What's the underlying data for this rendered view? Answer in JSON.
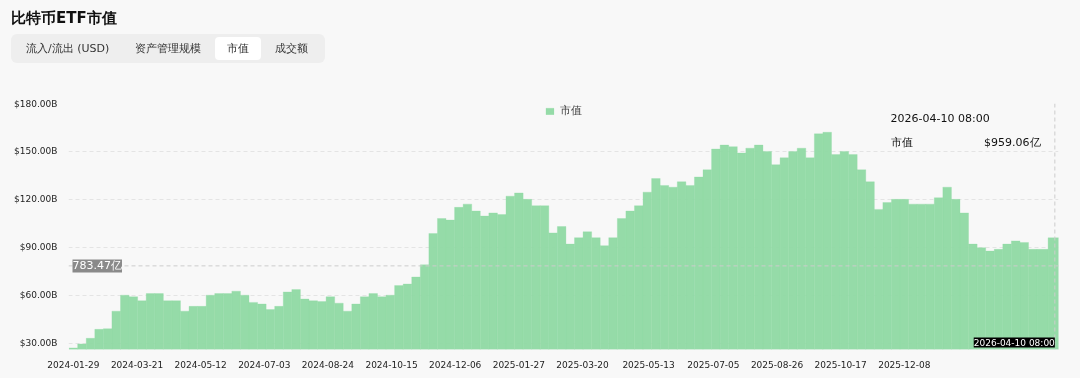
{
  "chart_data": {
    "type": "bar",
    "title": "比特币ETF市值",
    "annotations": [
      "流入/流出 (USD)",
      "资产管理规模",
      "市值",
      "成交额",
      "2026-04-10 08:00",
      "市值",
      "$959.06亿"
    ],
    "series": [
      {
        "name": "市值",
        "color": "#8fd9a3",
        "x": [
          "2024-01-29",
          "2024-02-05",
          "2024-02-12",
          "2024-02-19",
          "2024-02-26",
          "2024-03-04",
          "2024-03-11",
          "2024-03-18",
          "2024-03-25",
          "2024-04-01",
          "2024-04-08",
          "2024-04-15",
          "2024-04-22",
          "2024-04-29",
          "2024-05-06",
          "2024-05-13",
          "2024-05-20",
          "2024-05-27",
          "2024-06-03",
          "2024-06-10",
          "2024-06-17",
          "2024-06-24",
          "2024-07-01",
          "2024-07-08",
          "2024-07-15",
          "2024-07-22",
          "2024-07-29",
          "2024-08-05",
          "2024-08-12",
          "2024-08-19",
          "2024-08-26",
          "2024-09-02",
          "2024-09-09",
          "2024-09-16",
          "2024-09-23",
          "2024-09-30",
          "2024-10-07",
          "2024-10-14",
          "2024-10-21",
          "2024-10-28",
          "2024-11-04",
          "2024-11-11",
          "2024-11-18",
          "2024-11-25",
          "2024-12-02",
          "2024-12-09",
          "2024-12-16",
          "2024-12-23",
          "2024-12-30",
          "2025-01-06",
          "2025-01-13",
          "2025-01-20",
          "2025-01-27",
          "2025-02-03",
          "2025-02-10",
          "2025-02-17",
          "2025-02-24",
          "2025-03-03",
          "2025-03-10",
          "2025-03-17",
          "2025-03-24",
          "2025-03-31",
          "2025-04-07",
          "2025-04-14",
          "2025-04-21",
          "2025-04-28",
          "2025-05-05",
          "2025-05-12",
          "2025-05-19",
          "2025-05-26",
          "2025-06-02",
          "2025-06-09",
          "2025-06-16",
          "2025-06-23",
          "2025-06-30",
          "2025-07-07",
          "2025-07-14",
          "2025-07-21",
          "2025-07-28",
          "2025-08-04",
          "2025-08-11",
          "2025-08-18",
          "2025-08-25",
          "2025-09-01",
          "2025-09-08",
          "2025-09-15",
          "2025-09-22",
          "2025-09-29",
          "2025-10-06",
          "2025-10-13",
          "2025-10-20",
          "2025-10-27",
          "2025-11-03",
          "2025-11-10",
          "2025-11-17",
          "2025-11-24",
          "2025-12-01",
          "2025-12-08",
          "2025-12-15",
          "2025-12-22",
          "2025-12-29",
          "2026-01-05",
          "2026-01-12",
          "2026-01-19",
          "2026-01-26",
          "2026-02-02",
          "2026-02-09",
          "2026-02-16",
          "2026-02-23",
          "2026-03-02",
          "2026-03-09",
          "2026-03-16",
          "2026-03-23",
          "2026-03-30",
          "2026-04-10"
        ],
        "values": [
          27,
          29.5,
          33,
          38.6,
          39,
          50,
          60,
          59,
          56.5,
          61,
          61,
          56.5,
          56.5,
          50,
          53,
          53,
          60,
          61,
          61,
          62.5,
          60,
          55.5,
          54.5,
          51,
          53,
          62,
          63.5,
          57.6,
          56.5,
          56,
          59,
          55,
          50,
          54.5,
          59,
          61,
          59,
          60,
          66,
          67,
          71.4,
          79,
          98.6,
          108,
          107,
          115,
          117,
          112.7,
          109.5,
          111.5,
          110.5,
          122,
          124,
          120,
          116,
          116,
          99,
          103,
          92,
          96,
          99.7,
          96,
          91,
          96,
          108,
          112.7,
          116,
          124.5,
          133,
          128.7,
          127.6,
          131,
          128.7,
          134,
          138.5,
          151.5,
          154,
          153,
          149,
          152,
          154,
          150,
          141.7,
          146,
          150,
          152,
          146,
          161,
          162,
          148,
          150,
          148,
          138.5,
          131,
          113.7,
          118,
          120,
          120,
          117,
          117,
          117,
          121,
          127.6,
          120,
          111.5,
          92,
          89.7,
          87.6,
          88.7,
          92,
          94,
          93,
          88.7,
          88.7,
          95.9
        ]
      }
    ],
    "xlim": [
      "2024-01-25",
      "2026-04-13"
    ],
    "xticks": [
      "2024-01-29",
      "2024-03-21",
      "2024-05-12",
      "2024-07-03",
      "2024-08-24",
      "2024-10-15",
      "2024-12-06",
      "2025-01-27",
      "2025-03-20",
      "2025-05-13",
      "2025-07-05",
      "2025-08-26",
      "2025-10-17",
      "2025-12-08"
    ],
    "ylim": [
      26,
      180
    ],
    "yticks": [
      {
        "value": 30,
        "label": "$30.00B"
      },
      {
        "value": 60,
        "label": "$60.00B"
      },
      {
        "value": 90,
        "label": "$90.00B"
      },
      {
        "value": 120,
        "label": "$120.00B"
      },
      {
        "value": 150,
        "label": "$150.00B"
      },
      {
        "value": 180,
        "label": "$180.00B"
      }
    ],
    "ref_lines": [
      {
        "axis": "y",
        "value": 78.347,
        "label": "783.47亿",
        "color": "#cccccc",
        "line_style": "dashed"
      },
      {
        "axis": "x",
        "value": "2026-04-10",
        "label": "2026-04-10 08:00",
        "color": "#cccccc",
        "line_style": "dashed"
      }
    ],
    "grid": "y",
    "legend": "top"
  }
}
